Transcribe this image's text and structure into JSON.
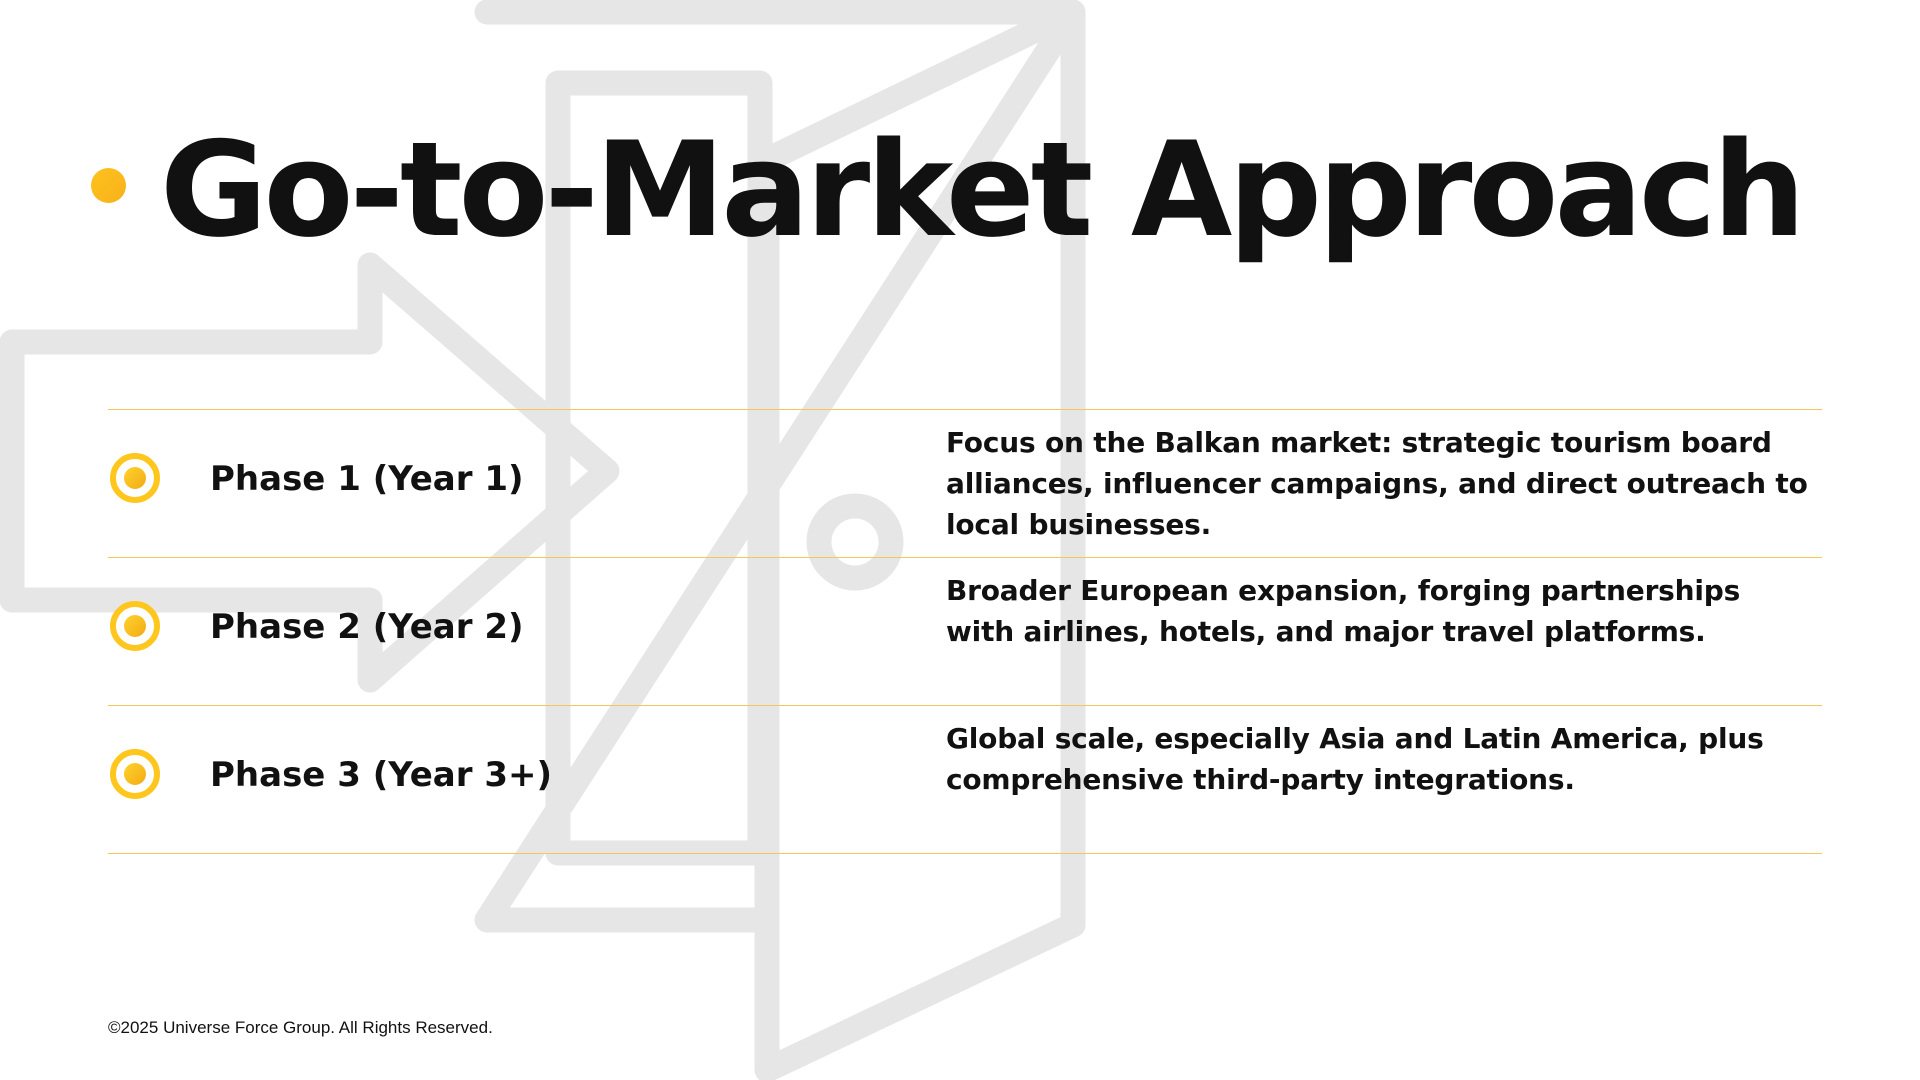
{
  "slide": {
    "title": "Go-to-Market Approach",
    "phases": [
      {
        "label": "Phase 1 (Year 1)",
        "description": "Focus on the Balkan market: strategic tourism board alliances, influencer campaigns, and direct outreach to local businesses."
      },
      {
        "label": "Phase 2 (Year 2)",
        "description": "Broader European expansion, forging partnerships with airlines, hotels, and major travel platforms."
      },
      {
        "label": "Phase 3 (Year 3+)",
        "description": "Global scale, especially Asia and Latin America, plus comprehensive third-party integrations."
      }
    ],
    "footer": "©2025 Universe Force Group. All Rights Reserved."
  },
  "colors": {
    "accent": "#ffc61d",
    "background_art": "#e6e6e6",
    "text": "#111111",
    "divider": "#f6c65b"
  },
  "icons": {
    "background": "door-entry-arrow-icon",
    "phase_marker": "circle-marker-icon",
    "title_bullet": "dot-bullet-icon"
  }
}
